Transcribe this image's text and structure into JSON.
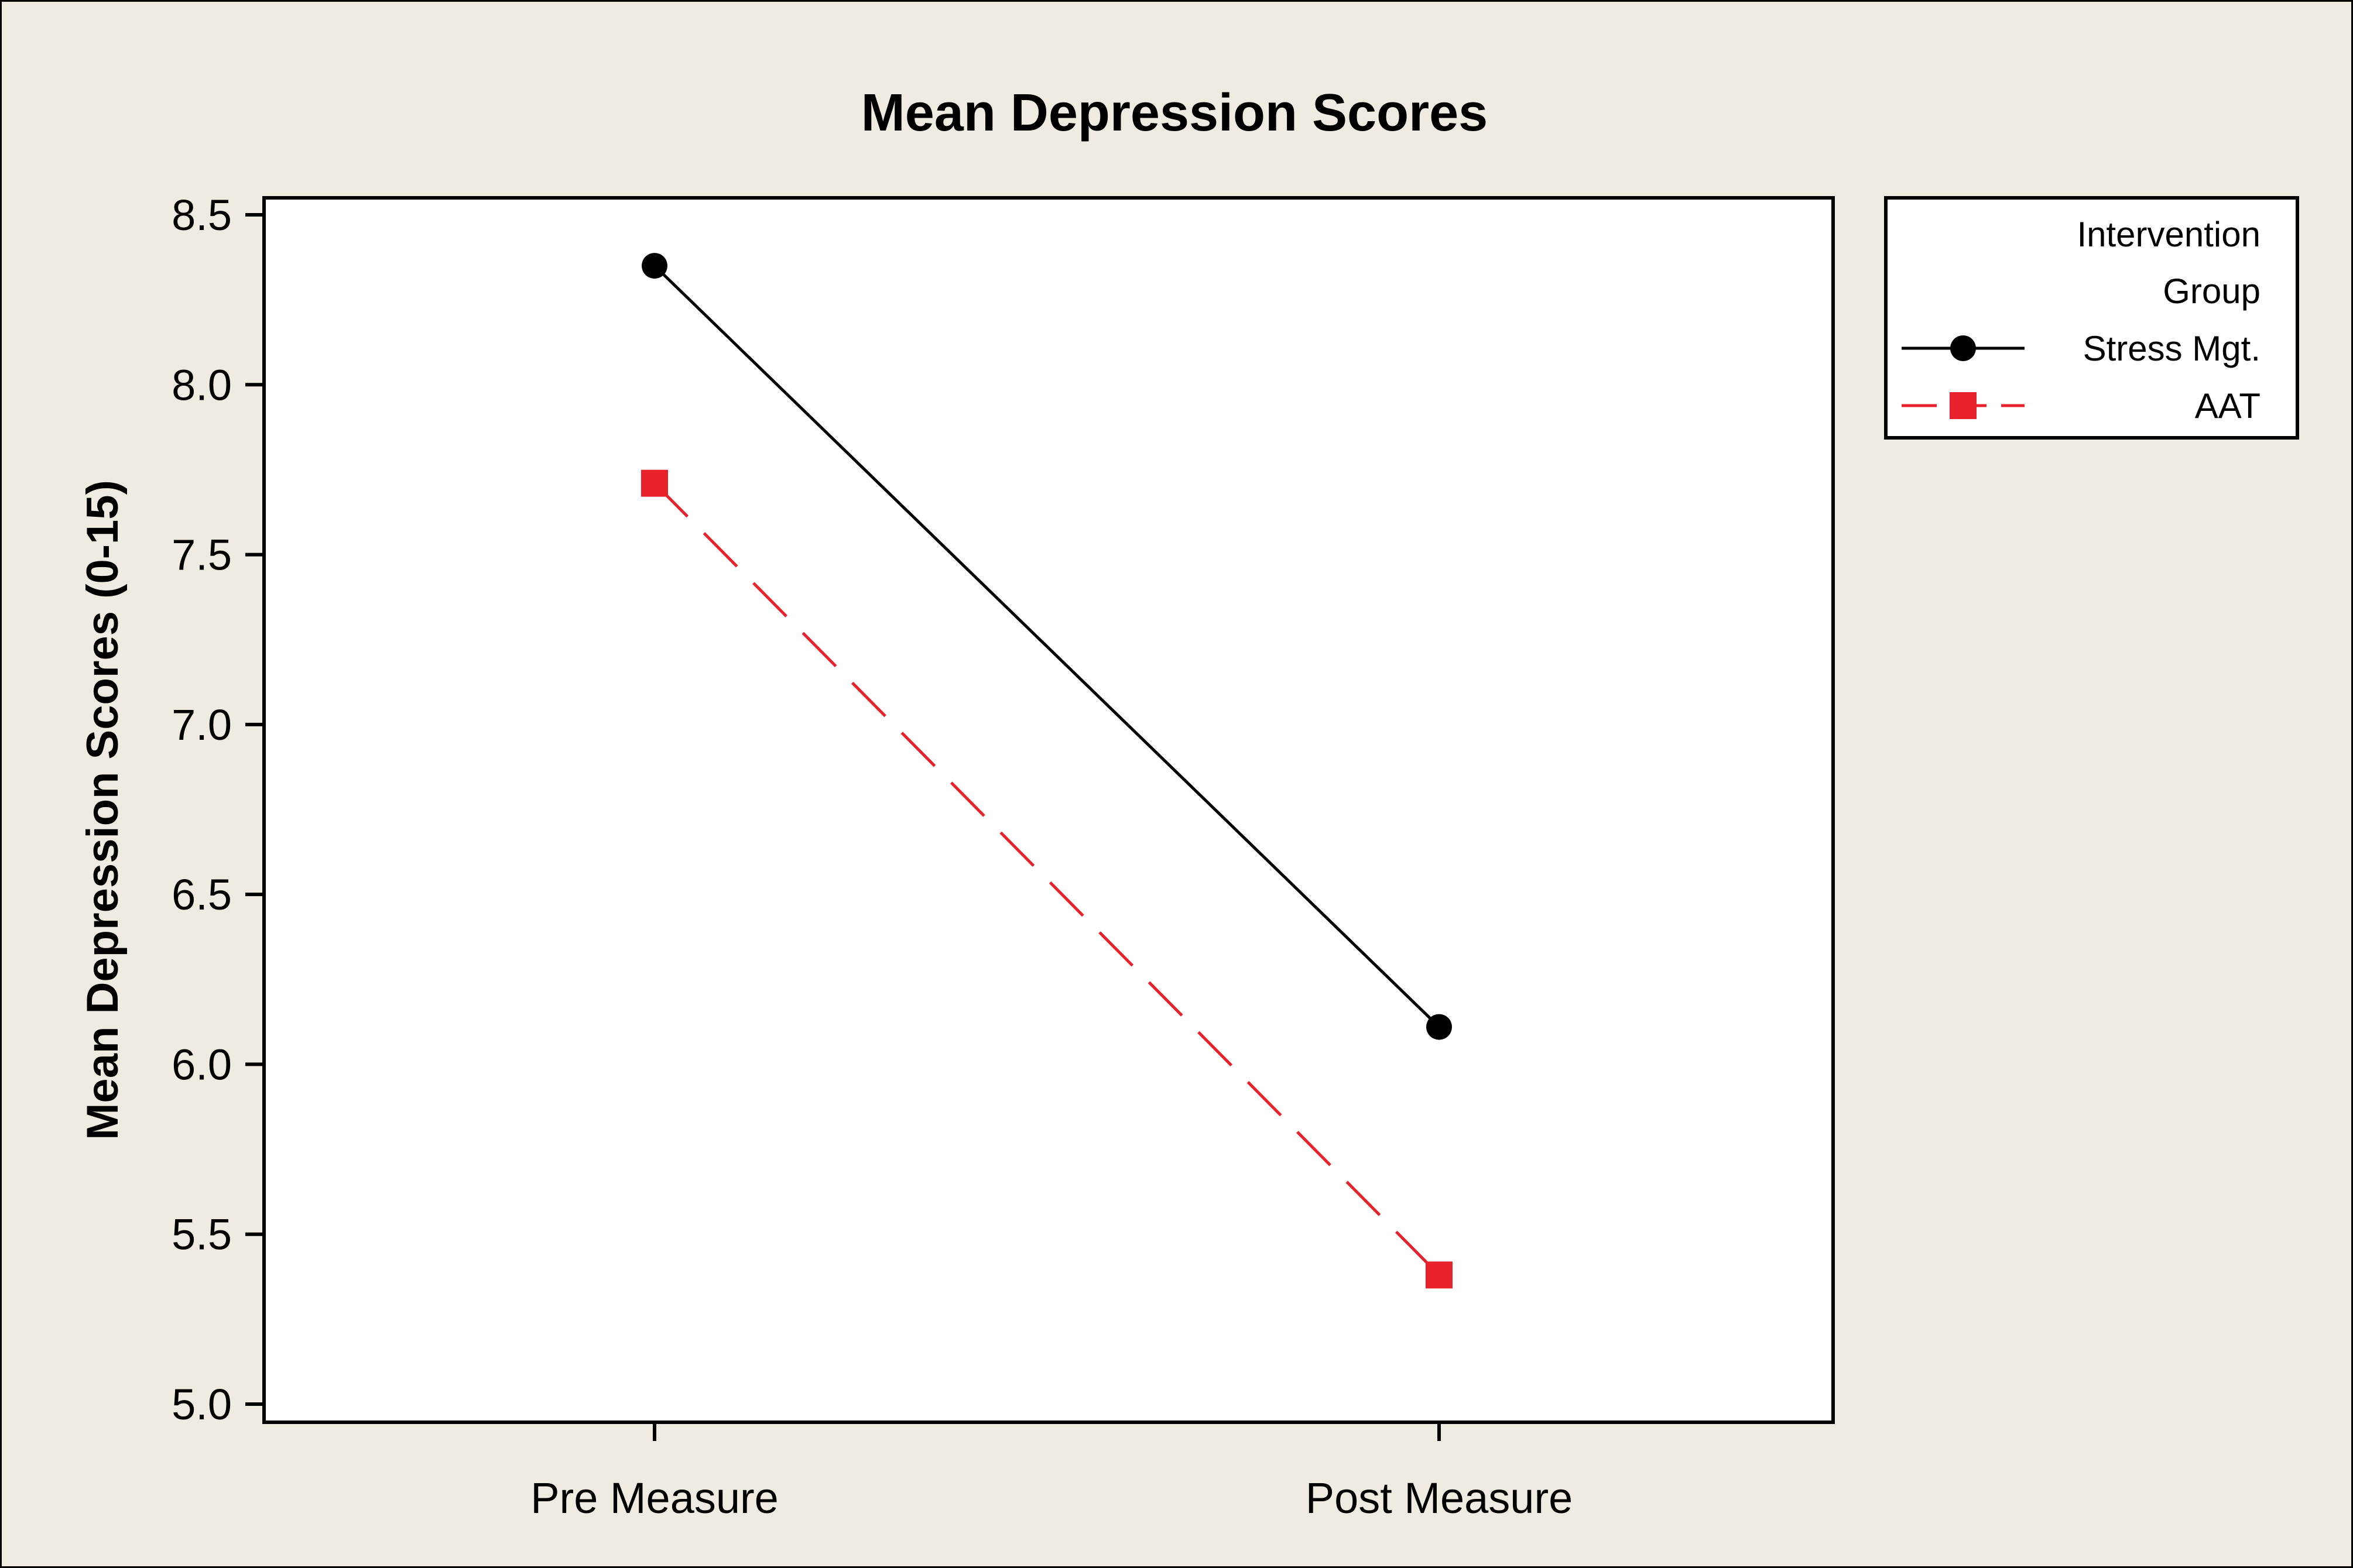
{
  "chart_data": {
    "type": "line",
    "title": "Mean Depression Scores",
    "xlabel": "",
    "ylabel": "Mean Depression Scores (0-15)",
    "categories": [
      "Pre Measure",
      "Post Measure"
    ],
    "ylim": [
      5.0,
      8.5
    ],
    "yticks": [
      5.0,
      5.5,
      6.0,
      6.5,
      7.0,
      7.5,
      8.0,
      8.5
    ],
    "ytick_labels": [
      "5.0",
      "5.5",
      "6.0",
      "6.5",
      "7.0",
      "7.5",
      "8.0",
      "8.5"
    ],
    "grid": false,
    "legend": {
      "title_lines": [
        "Intervention",
        "Group"
      ],
      "placement": "right-top"
    },
    "series": [
      {
        "name": "Stress Mgt.",
        "values": [
          8.35,
          6.11
        ],
        "color": "#000000",
        "marker": "circle",
        "line": "solid"
      },
      {
        "name": "AAT",
        "values": [
          7.71,
          5.38
        ],
        "color": "#e8222b",
        "marker": "square",
        "line": "dashed"
      }
    ]
  }
}
